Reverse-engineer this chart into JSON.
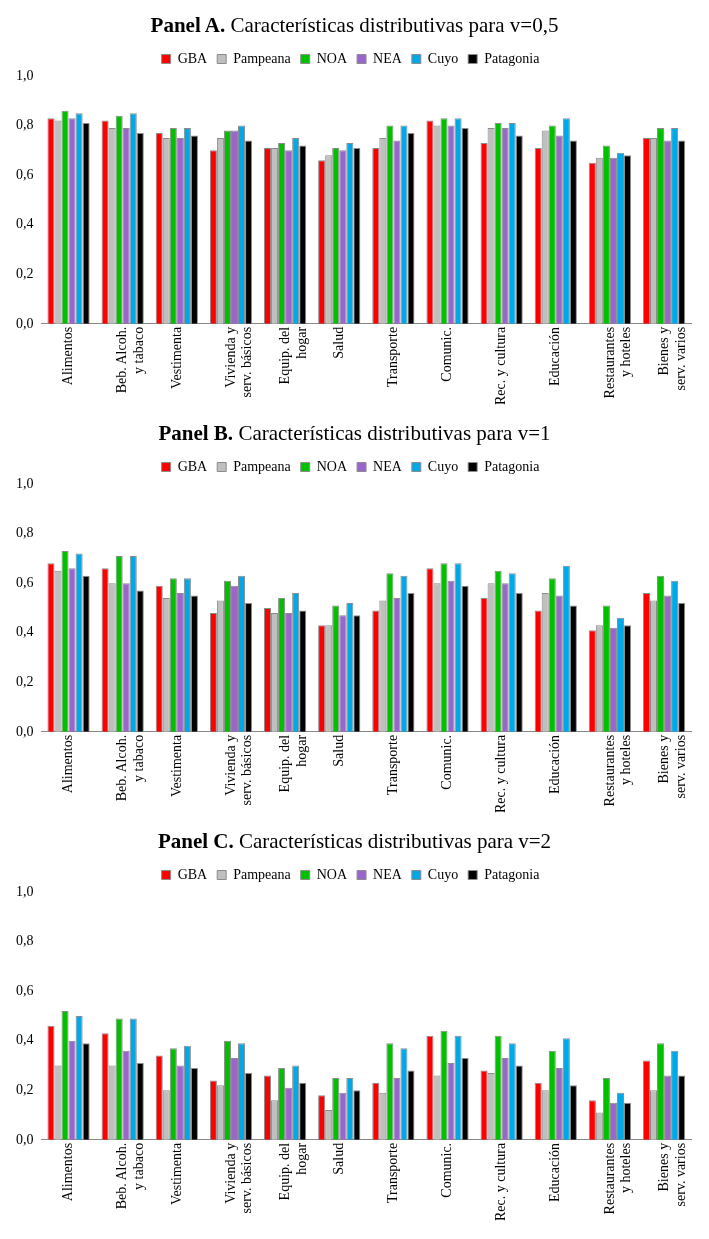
{
  "chart_data": [
    {
      "type": "bar",
      "title": "Panel A. Características distributivas para v=0,5",
      "categories": [
        "Alimentos",
        "Beb. Alcoh.\ny tabaco",
        "Vestimenta",
        "Vivienda y\nserv. básicos",
        "Equip. del\nhogar",
        "Salud",
        "Transporte",
        "Comunic.",
        "Rec. y cultura",
        "Educación",
        "Restaurantes\ny hoteles",
        "Bienes y\nserv. varios"
      ],
      "series": [
        {
          "name": "GBA",
          "color": "#ff0000",
          "values": [
            0.83,
            0.82,
            0.77,
            0.7,
            0.71,
            0.66,
            0.71,
            0.82,
            0.73,
            0.71,
            0.65,
            0.75
          ]
        },
        {
          "name": "Pampeana",
          "color": "#bfbfbf",
          "values": [
            0.82,
            0.79,
            0.75,
            0.75,
            0.71,
            0.68,
            0.75,
            0.8,
            0.79,
            0.78,
            0.67,
            0.75
          ]
        },
        {
          "name": "NOA",
          "color": "#00c000",
          "values": [
            0.86,
            0.84,
            0.79,
            0.78,
            0.73,
            0.71,
            0.8,
            0.83,
            0.81,
            0.8,
            0.72,
            0.79
          ]
        },
        {
          "name": "NEA",
          "color": "#9966cc",
          "values": [
            0.83,
            0.79,
            0.75,
            0.78,
            0.7,
            0.7,
            0.74,
            0.8,
            0.79,
            0.76,
            0.67,
            0.74
          ]
        },
        {
          "name": "Cuyo",
          "color": "#00a8e8",
          "values": [
            0.85,
            0.85,
            0.79,
            0.8,
            0.75,
            0.73,
            0.8,
            0.83,
            0.81,
            0.83,
            0.69,
            0.79
          ]
        },
        {
          "name": "Patagonia",
          "color": "#000000",
          "values": [
            0.81,
            0.77,
            0.76,
            0.74,
            0.72,
            0.71,
            0.77,
            0.79,
            0.76,
            0.74,
            0.68,
            0.74
          ]
        }
      ],
      "ylim": [
        0,
        1
      ],
      "yticks": [
        {
          "value": 0,
          "label": "0,0"
        },
        {
          "value": 0.2,
          "label": "0,2"
        },
        {
          "value": 0.4,
          "label": "0,4"
        },
        {
          "value": 0.6,
          "label": "0,6"
        },
        {
          "value": 0.8,
          "label": "0,8"
        },
        {
          "value": 1,
          "label": "1,0"
        }
      ],
      "legend": "top",
      "grid": false
    },
    {
      "type": "bar",
      "title": "Panel B. Características distributivas para v=1",
      "categories": [
        "Alimentos",
        "Beb. Alcoh.\ny tabaco",
        "Vestimenta",
        "Vivienda y\nserv. básicos",
        "Equip. del\nhogar",
        "Salud",
        "Transporte",
        "Comunic.",
        "Rec. y cultura",
        "Educación",
        "Restaurantes\ny hoteles",
        "Bienes y\nserv. varios"
      ],
      "series": [
        {
          "name": "GBA",
          "color": "#ff0000",
          "values": [
            0.68,
            0.66,
            0.59,
            0.48,
            0.5,
            0.43,
            0.49,
            0.66,
            0.54,
            0.49,
            0.41,
            0.56
          ]
        },
        {
          "name": "Pampeana",
          "color": "#bfbfbf",
          "values": [
            0.65,
            0.6,
            0.54,
            0.53,
            0.48,
            0.43,
            0.53,
            0.6,
            0.6,
            0.56,
            0.43,
            0.53
          ]
        },
        {
          "name": "NOA",
          "color": "#00c000",
          "values": [
            0.73,
            0.71,
            0.62,
            0.61,
            0.54,
            0.51,
            0.64,
            0.68,
            0.65,
            0.62,
            0.51,
            0.63
          ]
        },
        {
          "name": "NEA",
          "color": "#9966cc",
          "values": [
            0.66,
            0.6,
            0.56,
            0.59,
            0.48,
            0.47,
            0.54,
            0.61,
            0.6,
            0.55,
            0.42,
            0.55
          ]
        },
        {
          "name": "Cuyo",
          "color": "#00a8e8",
          "values": [
            0.72,
            0.71,
            0.62,
            0.63,
            0.56,
            0.52,
            0.63,
            0.68,
            0.64,
            0.67,
            0.46,
            0.61
          ]
        },
        {
          "name": "Patagonia",
          "color": "#000000",
          "values": [
            0.63,
            0.57,
            0.55,
            0.52,
            0.49,
            0.47,
            0.56,
            0.59,
            0.56,
            0.51,
            0.43,
            0.52
          ]
        }
      ],
      "ylim": [
        0,
        1
      ],
      "yticks": [
        {
          "value": 0,
          "label": "0,0"
        },
        {
          "value": 0.2,
          "label": "0,2"
        },
        {
          "value": 0.4,
          "label": "0,4"
        },
        {
          "value": 0.6,
          "label": "0,6"
        },
        {
          "value": 0.8,
          "label": "0,8"
        },
        {
          "value": 1,
          "label": "1,0"
        }
      ],
      "legend": "top",
      "grid": false
    },
    {
      "type": "bar",
      "title": "Panel C. Características distributivas para v=2",
      "categories": [
        "Alimentos",
        "Beb. Alcoh.\ny tabaco",
        "Vestimenta",
        "Vivienda y\nserv. básicos",
        "Equip. del\nhogar",
        "Salud",
        "Transporte",
        "Comunic.",
        "Rec. y cultura",
        "Educación",
        "Restaurantes\ny hoteles",
        "Bienes y\nserv. varios"
      ],
      "series": [
        {
          "name": "GBA",
          "color": "#ff0000",
          "values": [
            0.46,
            0.43,
            0.34,
            0.24,
            0.26,
            0.18,
            0.23,
            0.42,
            0.28,
            0.23,
            0.16,
            0.32
          ]
        },
        {
          "name": "Pampeana",
          "color": "#bfbfbf",
          "values": [
            0.3,
            0.3,
            0.2,
            0.22,
            0.16,
            0.12,
            0.19,
            0.26,
            0.27,
            0.2,
            0.11,
            0.2
          ]
        },
        {
          "name": "NOA",
          "color": "#00c000",
          "values": [
            0.52,
            0.49,
            0.37,
            0.4,
            0.29,
            0.25,
            0.39,
            0.44,
            0.42,
            0.36,
            0.25,
            0.39
          ]
        },
        {
          "name": "NEA",
          "color": "#9966cc",
          "values": [
            0.4,
            0.36,
            0.3,
            0.33,
            0.21,
            0.19,
            0.25,
            0.31,
            0.33,
            0.29,
            0.15,
            0.26
          ]
        },
        {
          "name": "Cuyo",
          "color": "#00a8e8",
          "values": [
            0.5,
            0.49,
            0.38,
            0.39,
            0.3,
            0.25,
            0.37,
            0.42,
            0.39,
            0.41,
            0.19,
            0.36
          ]
        },
        {
          "name": "Patagonia",
          "color": "#000000",
          "values": [
            0.39,
            0.31,
            0.29,
            0.27,
            0.23,
            0.2,
            0.28,
            0.33,
            0.3,
            0.22,
            0.15,
            0.26
          ]
        }
      ],
      "ylim": [
        0,
        1
      ],
      "yticks": [
        {
          "value": 0,
          "label": "0,0"
        },
        {
          "value": 0.2,
          "label": "0,2"
        },
        {
          "value": 0.4,
          "label": "0,4"
        },
        {
          "value": 0.6,
          "label": "0,6"
        },
        {
          "value": 0.8,
          "label": "0,8"
        },
        {
          "value": 1,
          "label": "1,0"
        }
      ],
      "legend": "top",
      "grid": false
    }
  ]
}
